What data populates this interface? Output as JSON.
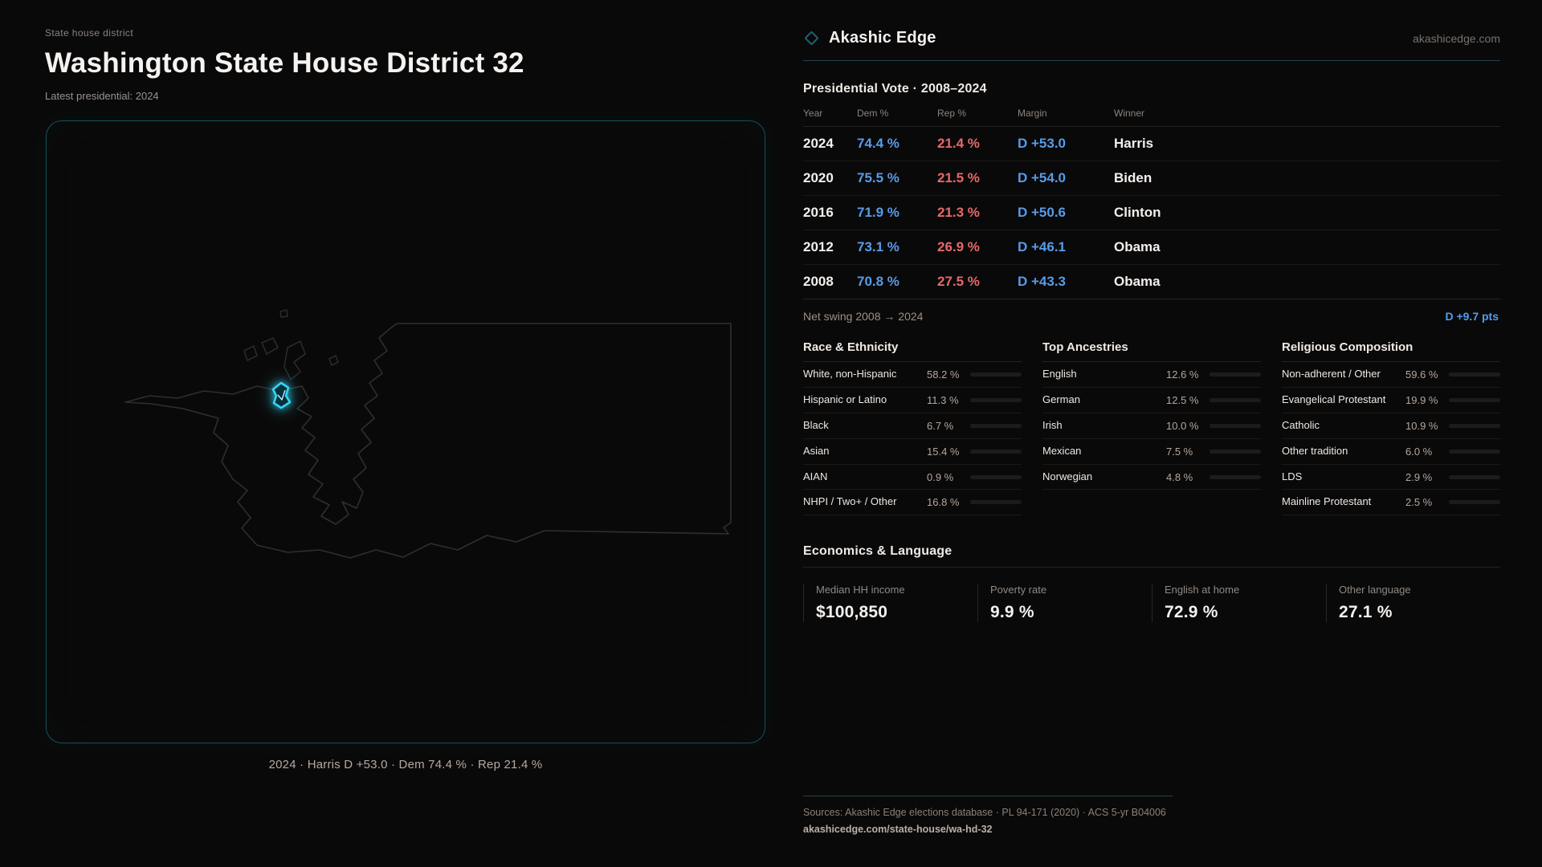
{
  "colors": {
    "background": "#0a0909",
    "dem_blue": "#589be8",
    "rep_red": "#e6696a",
    "accent_teal": "#1e6370",
    "district_cyan": "#35d4f2",
    "bar_fill": "#c9c5c1"
  },
  "left": {
    "eyebrow": "State house district",
    "title": "Washington State House District 32",
    "subtitle": "Latest presidential: 2024",
    "map_caption": "2024 · Harris D +53.0 · Dem 74.4 % · Rep 21.4 %"
  },
  "header": {
    "brand": "Akashic Edge",
    "logo_icon": "diamond-outline-icon",
    "domain": "akashicedge.com"
  },
  "vote_table": {
    "title": "Presidential Vote · 2008–2024",
    "columns": [
      "Year",
      "Dem %",
      "Rep %",
      "Margin",
      "Winner"
    ],
    "rows": [
      {
        "year": "2024",
        "dem": "74.4 %",
        "rep": "21.4 %",
        "margin": "D +53.0",
        "winner": "Harris"
      },
      {
        "year": "2020",
        "dem": "75.5 %",
        "rep": "21.5 %",
        "margin": "D +54.0",
        "winner": "Biden"
      },
      {
        "year": "2016",
        "dem": "71.9 %",
        "rep": "21.3 %",
        "margin": "D +50.6",
        "winner": "Clinton"
      },
      {
        "year": "2012",
        "dem": "73.1 %",
        "rep": "26.9 %",
        "margin": "D +46.1",
        "winner": "Obama"
      },
      {
        "year": "2008",
        "dem": "70.8 %",
        "rep": "27.5 %",
        "margin": "D +43.3",
        "winner": "Obama"
      }
    ],
    "net_swing_label": "Net swing 2008 → 2024",
    "net_swing_value": "D +9.7 pts"
  },
  "demographics": {
    "race": {
      "title": "Race & Ethnicity",
      "rows": [
        {
          "label": "White, non-Hispanic",
          "value": "58.2 %",
          "pct": 58.2
        },
        {
          "label": "Hispanic or Latino",
          "value": "11.3 %",
          "pct": 11.3
        },
        {
          "label": "Black",
          "value": "6.7 %",
          "pct": 6.7
        },
        {
          "label": "Asian",
          "value": "15.4 %",
          "pct": 15.4
        },
        {
          "label": "AIAN",
          "value": "0.9 %",
          "pct": 0.9
        },
        {
          "label": "NHPI / Two+ / Other",
          "value": "16.8 %",
          "pct": 16.8
        }
      ]
    },
    "ancestries": {
      "title": "Top Ancestries",
      "rows": [
        {
          "label": "English",
          "value": "12.6 %",
          "pct": 12.6
        },
        {
          "label": "German",
          "value": "12.5 %",
          "pct": 12.5
        },
        {
          "label": "Irish",
          "value": "10.0 %",
          "pct": 10.0
        },
        {
          "label": "Mexican",
          "value": "7.5 %",
          "pct": 7.5
        },
        {
          "label": "Norwegian",
          "value": "4.8 %",
          "pct": 4.8
        }
      ]
    },
    "religion": {
      "title": "Religious Composition",
      "rows": [
        {
          "label": "Non-adherent / Other",
          "value": "59.6 %",
          "pct": 59.6
        },
        {
          "label": "Evangelical Protestant",
          "value": "19.9 %",
          "pct": 19.9
        },
        {
          "label": "Catholic",
          "value": "10.9 %",
          "pct": 10.9
        },
        {
          "label": "Other tradition",
          "value": "6.0 %",
          "pct": 6.0
        },
        {
          "label": "LDS",
          "value": "2.9 %",
          "pct": 2.9
        },
        {
          "label": "Mainline Protestant",
          "value": "2.5 %",
          "pct": 2.5
        }
      ]
    }
  },
  "economics": {
    "title": "Economics & Language",
    "stats": [
      {
        "label": "Median HH income",
        "value": "$100,850"
      },
      {
        "label": "Poverty rate",
        "value": "9.9 %"
      },
      {
        "label": "English at home",
        "value": "72.9 %"
      },
      {
        "label": "Other language",
        "value": "27.1 %"
      }
    ]
  },
  "footer": {
    "sources": "Sources: Akashic Edge elections database · PL 94-171 (2020) · ACS 5-yr B04006",
    "url": "akashicedge.com/state-house/wa-hd-32"
  }
}
